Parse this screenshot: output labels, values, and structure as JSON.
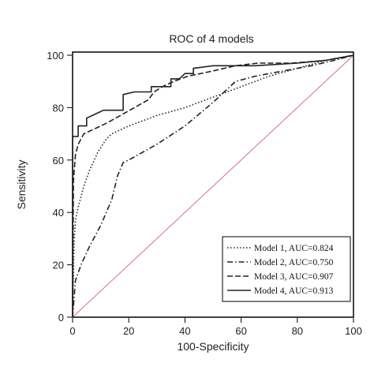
{
  "chart_data": {
    "type": "line",
    "title": "ROC of 4 models",
    "xlabel": "100-Specificity",
    "ylabel": "Sensitivity",
    "xlim": [
      0,
      100
    ],
    "ylim": [
      0,
      100
    ],
    "x_ticks": [
      0,
      20,
      40,
      60,
      80,
      100
    ],
    "y_ticks": [
      0,
      20,
      40,
      60,
      80,
      100
    ],
    "grid": false,
    "legend_position": "bottom-right",
    "reference_line": {
      "x": [
        0,
        100
      ],
      "y": [
        0,
        100
      ],
      "color": "#d9607a"
    },
    "series": [
      {
        "name": "Model 1, AUC=0.824",
        "dash": "dotted",
        "x": [
          0,
          0.5,
          1,
          2,
          4,
          6,
          9,
          12,
          14,
          20,
          30,
          40,
          50,
          60,
          70,
          80,
          90,
          100
        ],
        "y": [
          0,
          28,
          37,
          42,
          50,
          56,
          63,
          68,
          70,
          73,
          77,
          80,
          84,
          88,
          92,
          95,
          98,
          100
        ]
      },
      {
        "name": "Model 2, AUC=0.750",
        "dash": "dashdot",
        "x": [
          0,
          1,
          3,
          6,
          10,
          14,
          16,
          18,
          20,
          30,
          40,
          50,
          58,
          65,
          75,
          85,
          93,
          100
        ],
        "y": [
          0,
          14,
          20,
          27,
          35,
          45,
          54,
          59,
          60,
          66,
          73,
          82,
          90,
          92,
          94,
          96,
          98,
          100
        ]
      },
      {
        "name": "Model 3, AUC=0.907",
        "dash": "dashed",
        "x": [
          0,
          0.3,
          1,
          2,
          4,
          8,
          12,
          17,
          22,
          27,
          29,
          32,
          36,
          41,
          50,
          58,
          66,
          78,
          90,
          100
        ],
        "y": [
          0,
          52,
          62,
          66,
          70,
          72,
          74,
          77,
          80,
          83,
          86,
          88,
          90,
          92,
          94,
          96,
          97,
          97,
          98,
          100
        ]
      },
      {
        "name": "Model 4, AUC=0.913",
        "dash": "solid",
        "x": [
          0,
          0,
          2,
          2,
          5,
          5,
          11,
          18,
          18,
          22,
          28,
          28,
          35,
          35,
          38,
          40,
          43,
          43,
          50,
          65,
          80,
          90,
          100
        ],
        "y": [
          0,
          69,
          69,
          73,
          73,
          76,
          79,
          79,
          85,
          86,
          86,
          88,
          88,
          91,
          91,
          93,
          93,
          95,
          96,
          96,
          97,
          98,
          100
        ]
      }
    ]
  }
}
